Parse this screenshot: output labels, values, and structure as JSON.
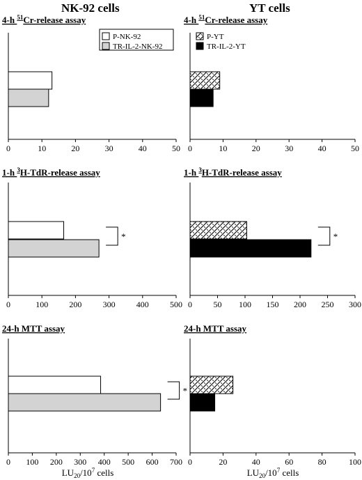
{
  "headers": {
    "left": "NK-92 cells",
    "right": "YT cells"
  },
  "xlabel": {
    "main": "LU",
    "sub": "20",
    "rest": "/10",
    "sup": "7",
    "tail": " cells"
  },
  "colors": {
    "gray": "#d3d3d3",
    "black": "#000000",
    "white": "#ffffff"
  },
  "legends": {
    "nk": [
      {
        "label": "P-NK-92",
        "fill": "white"
      },
      {
        "label": "TR-IL-2-NK-92",
        "fill": "gray"
      }
    ],
    "yt": [
      {
        "label": "P-YT",
        "fill": "hatch"
      },
      {
        "label": "TR-IL-2-YT",
        "fill": "black"
      }
    ]
  },
  "chart_data": [
    {
      "type": "bar",
      "orientation": "horizontal",
      "title": {
        "pre": "4-h ",
        "sup": "51",
        "post": "Cr-release assay"
      },
      "series": [
        {
          "name": "P-NK-92",
          "value": 13
        },
        {
          "name": "TR-IL-2-NK-92",
          "value": 12
        }
      ],
      "xlim": [
        0,
        50
      ],
      "ticks": [
        0,
        10,
        20,
        30,
        40,
        50
      ],
      "significance": false,
      "legend": "nk"
    },
    {
      "type": "bar",
      "orientation": "horizontal",
      "title": {
        "pre": "4-h ",
        "sup": "51",
        "post": "Cr-release assay"
      },
      "series": [
        {
          "name": "P-YT",
          "value": 9
        },
        {
          "name": "TR-IL-2-YT",
          "value": 7
        }
      ],
      "xlim": [
        0,
        50
      ],
      "ticks": [
        0,
        10,
        20,
        30,
        40,
        50
      ],
      "significance": false,
      "legend": "yt"
    },
    {
      "type": "bar",
      "orientation": "horizontal",
      "title": {
        "pre": "1-h ",
        "sup": "3",
        "post": "H-TdR-release assay"
      },
      "series": [
        {
          "name": "P-NK-92",
          "value": 165
        },
        {
          "name": "TR-IL-2-NK-92",
          "value": 270
        }
      ],
      "xlim": [
        0,
        500
      ],
      "ticks": [
        0,
        100,
        200,
        300,
        400,
        500
      ],
      "significance": true,
      "star": "*"
    },
    {
      "type": "bar",
      "orientation": "horizontal",
      "title": {
        "pre": "1-h ",
        "sup": "3",
        "post": "H-TdR-release assay"
      },
      "series": [
        {
          "name": "P-YT",
          "value": 103
        },
        {
          "name": "TR-IL-2-YT",
          "value": 220
        }
      ],
      "xlim": [
        0,
        300
      ],
      "ticks": [
        0,
        50,
        100,
        150,
        200,
        250,
        300
      ],
      "significance": true,
      "star": "*"
    },
    {
      "type": "bar",
      "orientation": "horizontal",
      "title": {
        "pre": "24-h MTT assay",
        "sup": "",
        "post": ""
      },
      "series": [
        {
          "name": "P-NK-92",
          "value": 385
        },
        {
          "name": "TR-IL-2-NK-92",
          "value": 635
        }
      ],
      "xlim": [
        0,
        700
      ],
      "ticks": [
        0,
        100,
        200,
        300,
        400,
        500,
        600,
        700
      ],
      "significance": true,
      "star": "*"
    },
    {
      "type": "bar",
      "orientation": "horizontal",
      "title": {
        "pre": "24-h MTT assay",
        "sup": "",
        "post": ""
      },
      "series": [
        {
          "name": "P-YT",
          "value": 26
        },
        {
          "name": "TR-IL-2-YT",
          "value": 15
        }
      ],
      "xlim": [
        0,
        100
      ],
      "ticks": [
        0,
        20,
        40,
        60,
        80,
        100
      ],
      "significance": false
    }
  ]
}
